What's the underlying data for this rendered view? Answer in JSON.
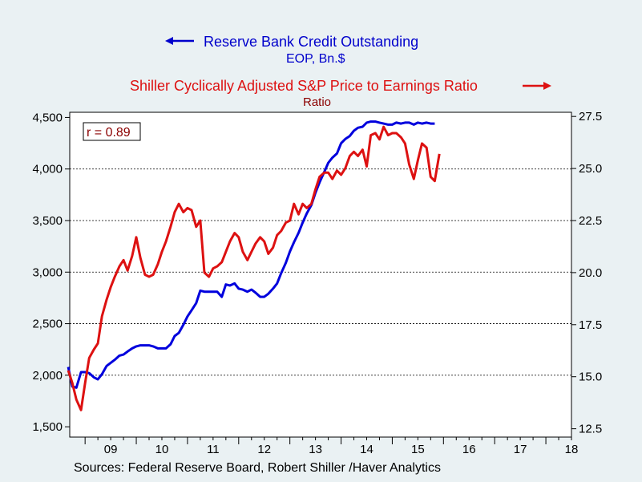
{
  "chart_data": {
    "type": "line",
    "title_left_series": "Reserve Bank Credit Outstanding",
    "subtitle_left_series": "EOP, Bn.$",
    "title_right_series": "Shiller Cyclically Adjusted S&P Price to Earnings Ratio",
    "subtitle_right_series": "Ratio",
    "annotation": "r = 0.89",
    "source": "Sources:  Federal Reserve Board, Robert Shiller /Haver Analytics",
    "x_ticks": [
      "09",
      "10",
      "11",
      "12",
      "13",
      "14",
      "15",
      "16",
      "17",
      "18"
    ],
    "xlim": [
      2008.7,
      2018.5
    ],
    "y_left": {
      "lim": [
        1400,
        4550
      ],
      "ticks": [
        1500,
        2000,
        2500,
        3000,
        3500,
        4000,
        4500
      ],
      "tick_labels": [
        "1,500",
        "2,000",
        "2,500",
        "3,000",
        "3,500",
        "4,000",
        "4,500"
      ]
    },
    "y_right": {
      "lim": [
        12.1,
        27.7
      ],
      "ticks": [
        12.5,
        15.0,
        17.5,
        20.0,
        22.5,
        25.0,
        27.5
      ],
      "tick_labels": [
        "12.5",
        "15.0",
        "17.5",
        "20.0",
        "22.5",
        "25.0",
        "27.5"
      ]
    },
    "grid": "horizontal-dashed",
    "series": [
      {
        "name": "Reserve Bank Credit Outstanding",
        "axis": "left",
        "color": "#0000dd",
        "points": [
          [
            2008.67,
            2080
          ],
          [
            2008.75,
            1890
          ],
          [
            2008.83,
            1880
          ],
          [
            2008.92,
            2030
          ],
          [
            2009.0,
            2030
          ],
          [
            2009.08,
            2020
          ],
          [
            2009.17,
            1980
          ],
          [
            2009.25,
            1960
          ],
          [
            2009.33,
            2010
          ],
          [
            2009.42,
            2090
          ],
          [
            2009.5,
            2120
          ],
          [
            2009.58,
            2150
          ],
          [
            2009.67,
            2190
          ],
          [
            2009.75,
            2200
          ],
          [
            2009.83,
            2230
          ],
          [
            2009.92,
            2260
          ],
          [
            2010.0,
            2280
          ],
          [
            2010.08,
            2290
          ],
          [
            2010.17,
            2290
          ],
          [
            2010.25,
            2290
          ],
          [
            2010.33,
            2280
          ],
          [
            2010.42,
            2260
          ],
          [
            2010.5,
            2260
          ],
          [
            2010.58,
            2260
          ],
          [
            2010.67,
            2300
          ],
          [
            2010.75,
            2380
          ],
          [
            2010.83,
            2410
          ],
          [
            2010.92,
            2490
          ],
          [
            2011.0,
            2570
          ],
          [
            2011.08,
            2630
          ],
          [
            2011.17,
            2700
          ],
          [
            2011.25,
            2820
          ],
          [
            2011.33,
            2810
          ],
          [
            2011.42,
            2810
          ],
          [
            2011.5,
            2810
          ],
          [
            2011.58,
            2810
          ],
          [
            2011.67,
            2760
          ],
          [
            2011.75,
            2880
          ],
          [
            2011.83,
            2870
          ],
          [
            2011.92,
            2890
          ],
          [
            2012.0,
            2840
          ],
          [
            2012.08,
            2830
          ],
          [
            2012.17,
            2810
          ],
          [
            2012.25,
            2830
          ],
          [
            2012.33,
            2800
          ],
          [
            2012.42,
            2760
          ],
          [
            2012.5,
            2760
          ],
          [
            2012.58,
            2790
          ],
          [
            2012.67,
            2840
          ],
          [
            2012.75,
            2890
          ],
          [
            2012.83,
            2990
          ],
          [
            2012.92,
            3090
          ],
          [
            2013.0,
            3200
          ],
          [
            2013.08,
            3290
          ],
          [
            2013.17,
            3380
          ],
          [
            2013.25,
            3480
          ],
          [
            2013.33,
            3570
          ],
          [
            2013.42,
            3650
          ],
          [
            2013.5,
            3770
          ],
          [
            2013.58,
            3870
          ],
          [
            2013.67,
            3970
          ],
          [
            2013.75,
            4060
          ],
          [
            2013.83,
            4110
          ],
          [
            2013.92,
            4150
          ],
          [
            2014.0,
            4250
          ],
          [
            2014.08,
            4290
          ],
          [
            2014.17,
            4320
          ],
          [
            2014.25,
            4370
          ],
          [
            2014.33,
            4400
          ],
          [
            2014.42,
            4410
          ],
          [
            2014.5,
            4450
          ],
          [
            2014.58,
            4460
          ],
          [
            2014.67,
            4460
          ],
          [
            2014.75,
            4450
          ],
          [
            2014.83,
            4440
          ],
          [
            2014.92,
            4430
          ],
          [
            2015.0,
            4430
          ],
          [
            2015.08,
            4450
          ],
          [
            2015.17,
            4440
          ],
          [
            2015.25,
            4450
          ],
          [
            2015.33,
            4450
          ],
          [
            2015.42,
            4430
          ],
          [
            2015.5,
            4450
          ],
          [
            2015.58,
            4440
          ],
          [
            2015.67,
            4450
          ],
          [
            2015.75,
            4440
          ],
          [
            2015.83,
            4440
          ]
        ]
      },
      {
        "name": "Shiller Cyclically Adjusted S&P Price to Earnings Ratio",
        "axis": "right",
        "color": "#dd1111",
        "points": [
          [
            2008.67,
            15.3
          ],
          [
            2008.75,
            14.7
          ],
          [
            2008.83,
            13.9
          ],
          [
            2008.92,
            13.4
          ],
          [
            2009.0,
            14.7
          ],
          [
            2009.08,
            15.9
          ],
          [
            2009.17,
            16.3
          ],
          [
            2009.25,
            16.6
          ],
          [
            2009.33,
            17.9
          ],
          [
            2009.42,
            18.7
          ],
          [
            2009.5,
            19.3
          ],
          [
            2009.58,
            19.8
          ],
          [
            2009.67,
            20.3
          ],
          [
            2009.75,
            20.6
          ],
          [
            2009.83,
            20.1
          ],
          [
            2009.92,
            20.8
          ],
          [
            2010.0,
            21.7
          ],
          [
            2010.08,
            20.7
          ],
          [
            2010.17,
            19.9
          ],
          [
            2010.25,
            19.8
          ],
          [
            2010.33,
            19.9
          ],
          [
            2010.42,
            20.4
          ],
          [
            2010.5,
            21.0
          ],
          [
            2010.58,
            21.5
          ],
          [
            2010.67,
            22.2
          ],
          [
            2010.75,
            22.9
          ],
          [
            2010.83,
            23.3
          ],
          [
            2010.92,
            22.9
          ],
          [
            2011.0,
            23.1
          ],
          [
            2011.08,
            23.0
          ],
          [
            2011.17,
            22.2
          ],
          [
            2011.25,
            22.5
          ],
          [
            2011.33,
            20.0
          ],
          [
            2011.42,
            19.8
          ],
          [
            2011.5,
            20.2
          ],
          [
            2011.58,
            20.3
          ],
          [
            2011.67,
            20.5
          ],
          [
            2011.75,
            21.0
          ],
          [
            2011.83,
            21.5
          ],
          [
            2011.92,
            21.9
          ],
          [
            2012.0,
            21.7
          ],
          [
            2012.08,
            21.0
          ],
          [
            2012.17,
            20.6
          ],
          [
            2012.25,
            21.0
          ],
          [
            2012.33,
            21.4
          ],
          [
            2012.42,
            21.7
          ],
          [
            2012.5,
            21.5
          ],
          [
            2012.58,
            20.9
          ],
          [
            2012.67,
            21.2
          ],
          [
            2012.75,
            21.8
          ],
          [
            2012.83,
            22.0
          ],
          [
            2012.92,
            22.4
          ],
          [
            2013.0,
            22.5
          ],
          [
            2013.08,
            23.3
          ],
          [
            2013.17,
            22.8
          ],
          [
            2013.25,
            23.3
          ],
          [
            2013.33,
            23.1
          ],
          [
            2013.42,
            23.3
          ],
          [
            2013.5,
            24.0
          ],
          [
            2013.58,
            24.6
          ],
          [
            2013.67,
            24.8
          ],
          [
            2013.75,
            24.8
          ],
          [
            2013.83,
            24.5
          ],
          [
            2013.92,
            24.9
          ],
          [
            2014.0,
            24.7
          ],
          [
            2014.08,
            25.0
          ],
          [
            2014.17,
            25.6
          ],
          [
            2014.25,
            25.8
          ],
          [
            2014.33,
            25.6
          ],
          [
            2014.42,
            25.9
          ],
          [
            2014.5,
            25.1
          ],
          [
            2014.58,
            26.6
          ],
          [
            2014.67,
            26.7
          ],
          [
            2014.75,
            26.4
          ],
          [
            2014.83,
            27.0
          ],
          [
            2014.92,
            26.6
          ],
          [
            2015.0,
            26.7
          ],
          [
            2015.08,
            26.7
          ],
          [
            2015.17,
            26.5
          ],
          [
            2015.25,
            26.2
          ],
          [
            2015.33,
            25.2
          ],
          [
            2015.42,
            24.5
          ],
          [
            2015.5,
            25.4
          ],
          [
            2015.58,
            26.2
          ],
          [
            2015.67,
            26.0
          ],
          [
            2015.75,
            24.6
          ],
          [
            2015.83,
            24.4
          ],
          [
            2015.92,
            25.7
          ]
        ]
      }
    ]
  }
}
